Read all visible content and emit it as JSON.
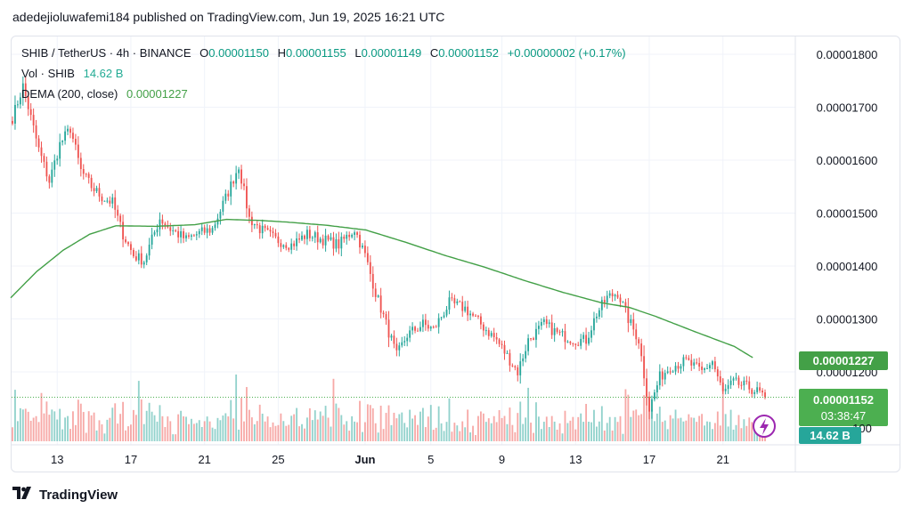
{
  "publisher": "adedejioluwafemi184 published on TradingView.com, Jun 19, 2025 16:21 UTC",
  "legend": {
    "symbol": "SHIB / TetherUS · 4h · BINANCE",
    "o_label": "O",
    "o": "0.00001150",
    "h_label": "H",
    "h": "0.00001155",
    "l_label": "L",
    "l": "0.00001149",
    "c_label": "C",
    "c": "0.00001152",
    "change": "+0.00000002 (+0.17%)",
    "vol_label": "Vol · SHIB",
    "vol": "14.62 B",
    "dema_label": "DEMA (200, close)",
    "dema": "0.00001227"
  },
  "price_badges": {
    "dema": "0.00001227",
    "last": "0.00001152",
    "countdown": "03:38:47",
    "volume": "14.62 B",
    "partial_tick": "100"
  },
  "logo": "TradingView",
  "colors": {
    "up": "#26a69a",
    "down": "#ef5350",
    "dema": "#43a047",
    "last": "#4caf50",
    "vol_badge": "#26a69a"
  },
  "icons": {
    "lightning": "lightning-icon",
    "logo": "tradingview-logo-icon"
  },
  "chart_data": {
    "type": "candlestick",
    "interval": "4h",
    "y_axis_ticks": [
      "0.00001800",
      "0.00001700",
      "0.00001600",
      "0.00001500",
      "0.00001400",
      "0.00001300",
      "0.00001200"
    ],
    "ylim": [
      1.09e-05,
      1.86e-05
    ],
    "x_axis_ticks": [
      "13",
      "17",
      "21",
      "25",
      "Jun",
      "5",
      "9",
      "13",
      "17",
      "21"
    ],
    "grid": true,
    "price_keyframes": [
      [
        0,
        16.8
      ],
      [
        4,
        17.4
      ],
      [
        10,
        16.2
      ],
      [
        14,
        15.6
      ],
      [
        18,
        16.3
      ],
      [
        22,
        16.6
      ],
      [
        26,
        15.8
      ],
      [
        30,
        15.5
      ],
      [
        34,
        15.3
      ],
      [
        38,
        15.2
      ],
      [
        42,
        14.6
      ],
      [
        46,
        14.2
      ],
      [
        50,
        14.1
      ],
      [
        56,
        14.9
      ],
      [
        60,
        14.7
      ],
      [
        66,
        14.5
      ],
      [
        70,
        14.6
      ],
      [
        76,
        14.7
      ],
      [
        82,
        15.4
      ],
      [
        86,
        15.9
      ],
      [
        90,
        14.9
      ],
      [
        94,
        14.7
      ],
      [
        100,
        14.5
      ],
      [
        106,
        14.4
      ],
      [
        112,
        14.6
      ],
      [
        118,
        14.5
      ],
      [
        124,
        14.4
      ],
      [
        130,
        14.7
      ],
      [
        134,
        14.2
      ],
      [
        138,
        13.5
      ],
      [
        142,
        12.9
      ],
      [
        146,
        12.3
      ],
      [
        150,
        12.7
      ],
      [
        156,
        12.9
      ],
      [
        160,
        12.8
      ],
      [
        166,
        13.3
      ],
      [
        172,
        13.2
      ],
      [
        178,
        12.9
      ],
      [
        184,
        12.6
      ],
      [
        188,
        12.3
      ],
      [
        192,
        12.0
      ],
      [
        196,
        12.6
      ],
      [
        202,
        12.9
      ],
      [
        208,
        12.7
      ],
      [
        214,
        12.6
      ],
      [
        218,
        12.6
      ],
      [
        222,
        13.1
      ],
      [
        226,
        13.4
      ],
      [
        230,
        13.5
      ],
      [
        234,
        13.0
      ],
      [
        238,
        12.6
      ],
      [
        242,
        11.3
      ],
      [
        246,
        11.9
      ],
      [
        250,
        12.1
      ],
      [
        256,
        12.2
      ],
      [
        262,
        12.0
      ],
      [
        266,
        12.2
      ],
      [
        270,
        11.6
      ],
      [
        274,
        11.8
      ],
      [
        280,
        11.7
      ],
      [
        284,
        11.6
      ],
      [
        286,
        11.52
      ]
    ],
    "dema_keyframes": [
      [
        0,
        13.4
      ],
      [
        10,
        13.9
      ],
      [
        20,
        14.3
      ],
      [
        30,
        14.6
      ],
      [
        40,
        14.76
      ],
      [
        55,
        14.75
      ],
      [
        70,
        14.78
      ],
      [
        82,
        14.88
      ],
      [
        95,
        14.86
      ],
      [
        105,
        14.83
      ],
      [
        120,
        14.77
      ],
      [
        135,
        14.68
      ],
      [
        150,
        14.45
      ],
      [
        165,
        14.2
      ],
      [
        180,
        13.98
      ],
      [
        195,
        13.73
      ],
      [
        210,
        13.5
      ],
      [
        225,
        13.3
      ],
      [
        235,
        13.22
      ],
      [
        245,
        13.05
      ],
      [
        260,
        12.76
      ],
      [
        275,
        12.48
      ],
      [
        282,
        12.27
      ]
    ],
    "price_unit": "1e-6 USDT",
    "candle_count": 287
  }
}
